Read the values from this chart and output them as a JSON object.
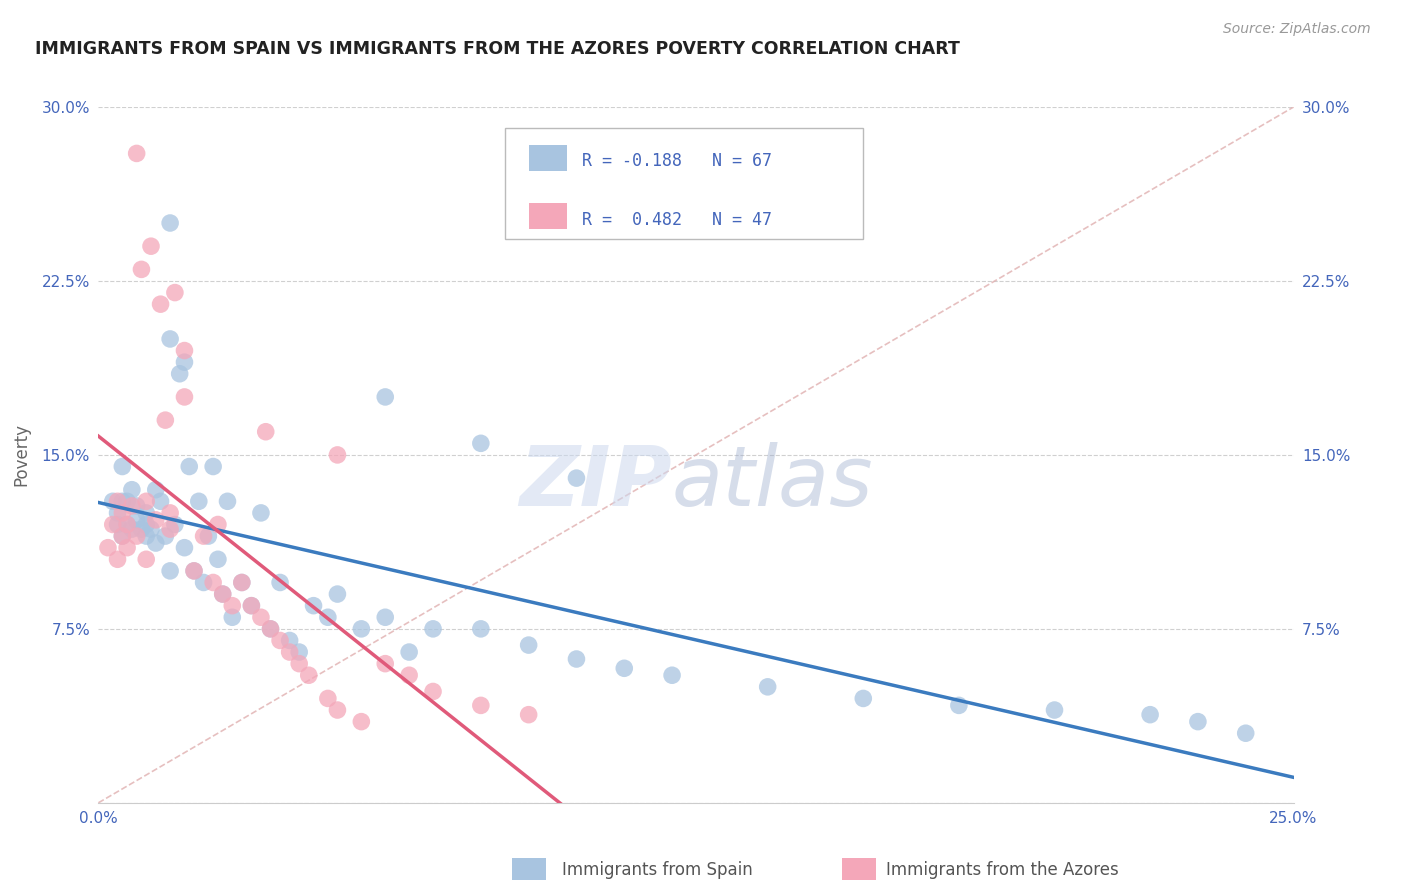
{
  "title": "IMMIGRANTS FROM SPAIN VS IMMIGRANTS FROM THE AZORES POVERTY CORRELATION CHART",
  "source": "Source: ZipAtlas.com",
  "ylabel": "Poverty",
  "xlim": [
    0.0,
    0.25
  ],
  "ylim": [
    0.0,
    0.3
  ],
  "xticks": [
    0.0,
    0.05,
    0.1,
    0.15,
    0.2,
    0.25
  ],
  "yticks": [
    0.0,
    0.075,
    0.15,
    0.225,
    0.3
  ],
  "ytick_labels": [
    "",
    "7.5%",
    "15.0%",
    "22.5%",
    "30.0%"
  ],
  "xtick_labels": [
    "0.0%",
    "",
    "",
    "",
    "",
    "25.0%"
  ],
  "r_spain": -0.188,
  "n_spain": 67,
  "r_azores": 0.482,
  "n_azores": 47,
  "color_spain": "#a8c4e0",
  "color_azores": "#f4a7b9",
  "line_color_spain": "#3b7bbf",
  "line_color_azores": "#e05a7a",
  "diagonal_color": "#e0b0b0",
  "background_color": "#ffffff",
  "grid_color": "#d0d0d0",
  "title_color": "#222222",
  "tick_label_color": "#4466bb",
  "spain_scatter_x": [
    0.003,
    0.004,
    0.004,
    0.005,
    0.005,
    0.005,
    0.006,
    0.006,
    0.007,
    0.007,
    0.008,
    0.008,
    0.009,
    0.01,
    0.01,
    0.01,
    0.011,
    0.012,
    0.012,
    0.013,
    0.014,
    0.015,
    0.015,
    0.016,
    0.017,
    0.018,
    0.018,
    0.019,
    0.02,
    0.021,
    0.022,
    0.023,
    0.024,
    0.025,
    0.026,
    0.027,
    0.028,
    0.03,
    0.032,
    0.034,
    0.036,
    0.038,
    0.04,
    0.042,
    0.045,
    0.048,
    0.05,
    0.055,
    0.06,
    0.065,
    0.07,
    0.08,
    0.09,
    0.1,
    0.11,
    0.12,
    0.14,
    0.16,
    0.18,
    0.2,
    0.22,
    0.23,
    0.24,
    0.06,
    0.08,
    0.1,
    0.015
  ],
  "spain_scatter_y": [
    0.13,
    0.125,
    0.12,
    0.13,
    0.115,
    0.145,
    0.13,
    0.12,
    0.135,
    0.118,
    0.128,
    0.122,
    0.118,
    0.125,
    0.115,
    0.12,
    0.118,
    0.135,
    0.112,
    0.13,
    0.115,
    0.25,
    0.1,
    0.12,
    0.185,
    0.19,
    0.11,
    0.145,
    0.1,
    0.13,
    0.095,
    0.115,
    0.145,
    0.105,
    0.09,
    0.13,
    0.08,
    0.095,
    0.085,
    0.125,
    0.075,
    0.095,
    0.07,
    0.065,
    0.085,
    0.08,
    0.09,
    0.075,
    0.08,
    0.065,
    0.075,
    0.075,
    0.068,
    0.062,
    0.058,
    0.055,
    0.05,
    0.045,
    0.042,
    0.04,
    0.038,
    0.035,
    0.03,
    0.175,
    0.155,
    0.14,
    0.2
  ],
  "azores_scatter_x": [
    0.002,
    0.003,
    0.004,
    0.004,
    0.005,
    0.005,
    0.006,
    0.006,
    0.007,
    0.008,
    0.008,
    0.009,
    0.01,
    0.01,
    0.011,
    0.012,
    0.013,
    0.014,
    0.015,
    0.015,
    0.016,
    0.018,
    0.018,
    0.02,
    0.022,
    0.024,
    0.025,
    0.026,
    0.028,
    0.03,
    0.032,
    0.034,
    0.036,
    0.038,
    0.04,
    0.042,
    0.044,
    0.048,
    0.05,
    0.055,
    0.06,
    0.065,
    0.07,
    0.08,
    0.09,
    0.05,
    0.035
  ],
  "azores_scatter_y": [
    0.11,
    0.12,
    0.13,
    0.105,
    0.115,
    0.125,
    0.12,
    0.11,
    0.128,
    0.115,
    0.28,
    0.23,
    0.105,
    0.13,
    0.24,
    0.122,
    0.215,
    0.165,
    0.118,
    0.125,
    0.22,
    0.195,
    0.175,
    0.1,
    0.115,
    0.095,
    0.12,
    0.09,
    0.085,
    0.095,
    0.085,
    0.08,
    0.075,
    0.07,
    0.065,
    0.06,
    0.055,
    0.045,
    0.04,
    0.035,
    0.06,
    0.055,
    0.048,
    0.042,
    0.038,
    0.15,
    0.16
  ],
  "legend_r_spain_text": "R = -0.188",
  "legend_n_spain_text": "N = 67",
  "legend_r_azores_text": "R =  0.482",
  "legend_n_azores_text": "N = 47",
  "bottom_label_spain": "Immigrants from Spain",
  "bottom_label_azores": "Immigrants from the Azores"
}
